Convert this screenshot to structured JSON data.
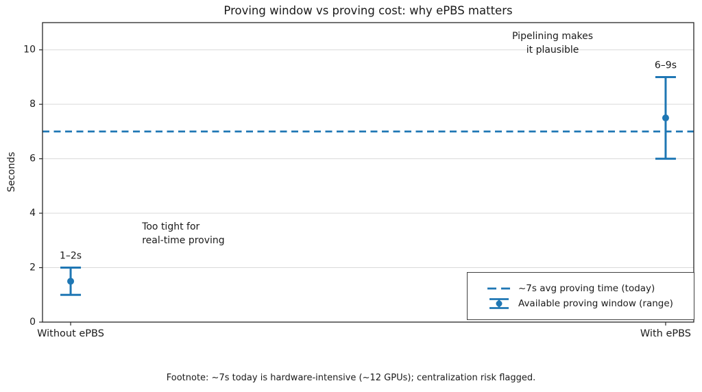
{
  "chart_data": {
    "type": "scatter",
    "title": "Proving window vs proving cost: why ePBS matters",
    "xlabel": "",
    "ylabel": "Seconds",
    "categories": [
      "Without ePBS",
      "With ePBS"
    ],
    "points": [
      {
        "category": "Without ePBS",
        "center": 1.5,
        "min": 1,
        "max": 2,
        "range_label": "1–2s"
      },
      {
        "category": "With ePBS",
        "center": 7.5,
        "min": 6,
        "max": 9,
        "range_label": "6–9s"
      }
    ],
    "reference_line": {
      "y": 7,
      "style": "dashed"
    },
    "ylim": [
      0,
      11
    ],
    "yticks": [
      0,
      2,
      4,
      6,
      8,
      10
    ],
    "grid": "horizontal",
    "annotations": [
      {
        "text": "Too tight for\nreal-time proving",
        "x": 0.12,
        "y": 3.5,
        "align": "left"
      },
      {
        "text": "Pipelining makes\nit plausible",
        "x": 0.81,
        "y": 10.5,
        "align": "center"
      }
    ],
    "legend": {
      "position": "lower right",
      "entries": [
        {
          "label": "~7s avg proving time (today)",
          "swatch": "dashed-line"
        },
        {
          "label": "Available proving window (range)",
          "swatch": "errorbar"
        }
      ]
    },
    "colors": {
      "accent": "#1f77b4",
      "grid": "#d9d9d9",
      "spine": "#262626",
      "text": "#1a1a1a"
    }
  },
  "footnote": {
    "text": "Footnote: ~7s today is hardware-intensive (~12 GPUs); centralization risk flagged."
  }
}
